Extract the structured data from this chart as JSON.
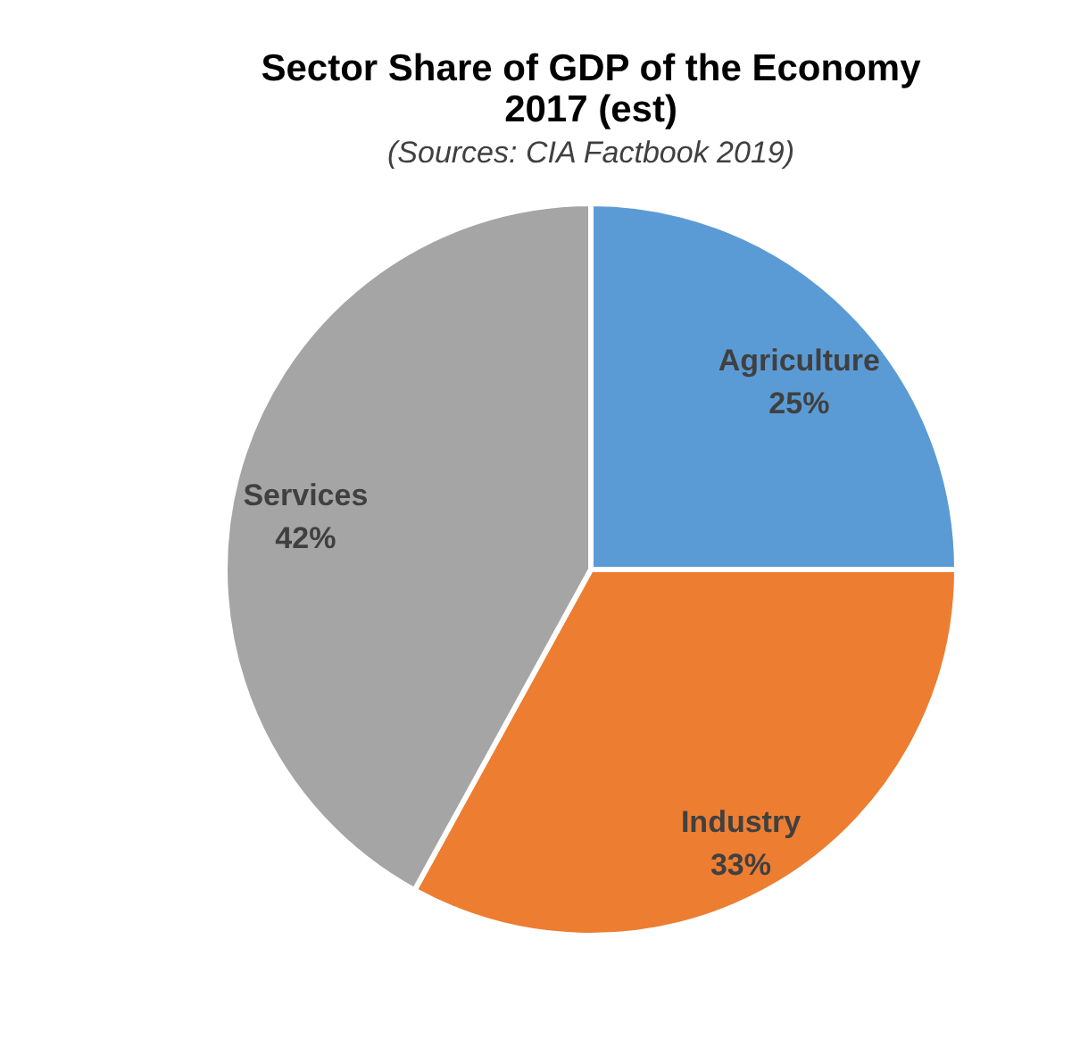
{
  "chart_data": {
    "type": "pie",
    "title": "Sector Share of GDP of the Economy\n2017 (est)",
    "subtitle": "(Sources: CIA Factbook 2019)",
    "categories": [
      "Agriculture",
      "Industry",
      "Services"
    ],
    "values": [
      25,
      33,
      42
    ],
    "colors": [
      "#5b9bd5",
      "#ed7d31",
      "#a5a5a5"
    ],
    "value_labels": [
      "25%",
      "33%",
      "42%"
    ],
    "legend": false
  }
}
